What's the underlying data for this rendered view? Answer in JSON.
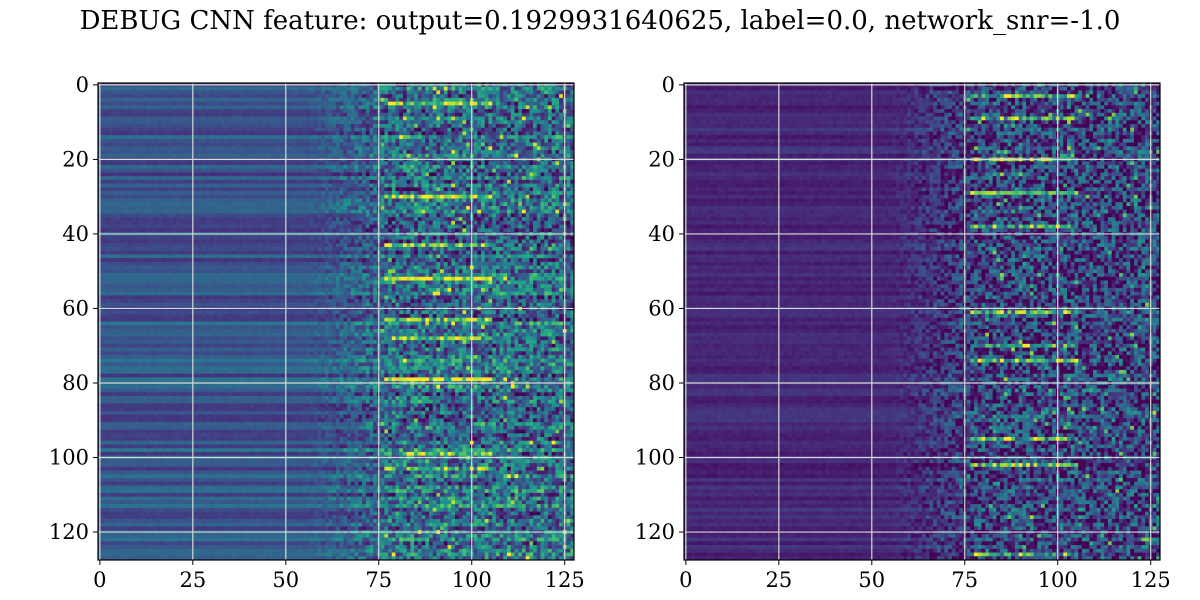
{
  "title": "DEBUG CNN feature: output=0.1929931640625, label=0.0, network_snr=-1.0",
  "chart_data": [
    {
      "type": "heatmap",
      "colormap": "viridis",
      "shape": [
        128,
        128
      ],
      "xlim": [
        -0.5,
        127.5
      ],
      "ylim": [
        127.5,
        -0.5
      ],
      "x_ticks": [
        0,
        25,
        50,
        75,
        100,
        125
      ],
      "y_ticks": [
        0,
        20,
        40,
        60,
        80,
        100,
        120
      ],
      "grid": true,
      "grid_color": "#d9d9d9",
      "level": 0.28,
      "hot_rows": [
        5,
        30,
        43,
        52,
        63,
        68,
        79,
        99,
        103
      ]
    },
    {
      "type": "heatmap",
      "colormap": "viridis",
      "shape": [
        128,
        128
      ],
      "xlim": [
        -0.5,
        127.5
      ],
      "ylim": [
        127.5,
        -0.5
      ],
      "x_ticks": [
        0,
        25,
        50,
        75,
        100,
        125
      ],
      "y_ticks": [
        0,
        20,
        40,
        60,
        80,
        100,
        120
      ],
      "grid": true,
      "grid_color": "#d9d9d9",
      "level": 0.12,
      "hot_rows": [
        3,
        9,
        20,
        29,
        38,
        61,
        70,
        74,
        95,
        102,
        126
      ]
    }
  ]
}
